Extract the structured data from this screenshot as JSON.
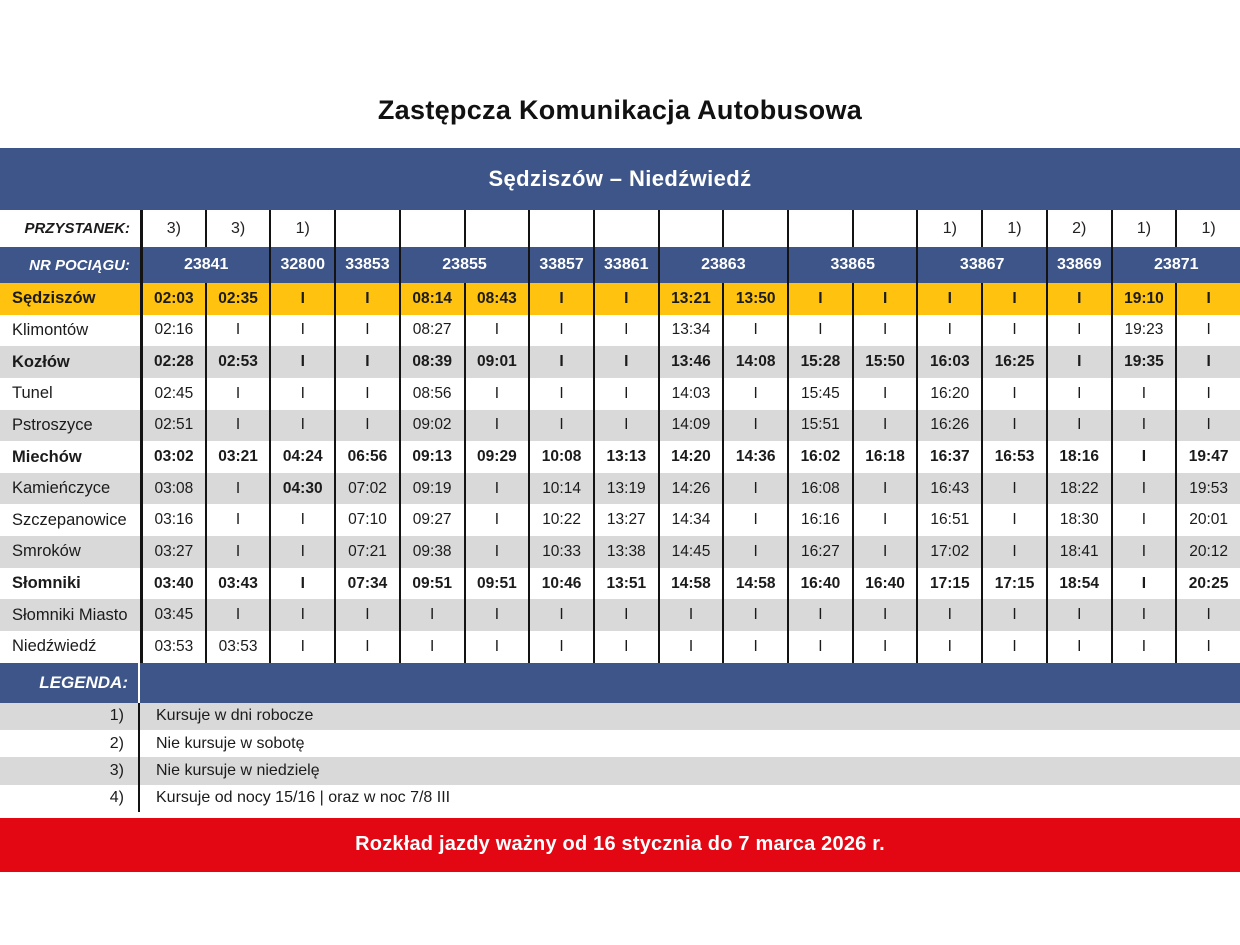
{
  "title": "Zastępcza Komunikacja Autobusowa",
  "route": {
    "title": "Sędziszów – Niedźwiedź"
  },
  "colors": {
    "blue": "#3D5588",
    "yellow": "#FFC20E",
    "red": "#E30613",
    "stripe_gray": "#D9D9D9",
    "line_black": "#131313"
  },
  "table": {
    "stop_label": "PRZYSTANEK:",
    "train_label": "NR POCIĄGU:",
    "footnote_markers": [
      "3)",
      "3)",
      "1)",
      "",
      "",
      "",
      "",
      "",
      "",
      "",
      "",
      "",
      "1)",
      "1)",
      "2)",
      "1)",
      "1)"
    ],
    "trains": [
      {
        "number": "23841",
        "span": 2
      },
      {
        "number": "32800",
        "span": 1
      },
      {
        "number": "33853",
        "span": 1
      },
      {
        "number": "23855",
        "span": 2
      },
      {
        "number": "33857",
        "span": 1
      },
      {
        "number": "33861",
        "span": 1
      },
      {
        "number": "23863",
        "span": 2
      },
      {
        "number": "33865",
        "span": 2
      },
      {
        "number": "33867",
        "span": 2
      },
      {
        "number": "33869",
        "span": 1
      },
      {
        "number": "23871",
        "span": 2
      }
    ],
    "rows": [
      {
        "station": "Sędziszów",
        "bold": true,
        "highlight": true,
        "times": [
          "02:03",
          "02:35",
          "I",
          "I",
          "08:14",
          "08:43",
          "I",
          "I",
          "13:21",
          "13:50",
          "I",
          "I",
          "I",
          "I",
          "I",
          "19:10",
          "I"
        ]
      },
      {
        "station": "Klimontów",
        "bold": false,
        "times": [
          "02:16",
          "I",
          "I",
          "I",
          "08:27",
          "I",
          "I",
          "I",
          "13:34",
          "I",
          "I",
          "I",
          "I",
          "I",
          "I",
          "19:23",
          "I"
        ]
      },
      {
        "station": "Kozłów",
        "bold": true,
        "times": [
          "02:28",
          "02:53",
          "I",
          "I",
          "08:39",
          "09:01",
          "I",
          "I",
          "13:46",
          "14:08",
          "15:28",
          "15:50",
          "16:03",
          "16:25",
          "I",
          "19:35",
          "I"
        ]
      },
      {
        "station": "Tunel",
        "bold": false,
        "times": [
          "02:45",
          "I",
          "I",
          "I",
          "08:56",
          "I",
          "I",
          "I",
          "14:03",
          "I",
          "15:45",
          "I",
          "16:20",
          "I",
          "I",
          "I",
          "I"
        ]
      },
      {
        "station": "Pstroszyce",
        "bold": false,
        "times": [
          "02:51",
          "I",
          "I",
          "I",
          "09:02",
          "I",
          "I",
          "I",
          "14:09",
          "I",
          "15:51",
          "I",
          "16:26",
          "I",
          "I",
          "I",
          "I"
        ]
      },
      {
        "station": "Miechów",
        "bold": true,
        "times": [
          "03:02",
          "03:21",
          "04:24",
          "06:56",
          "09:13",
          "09:29",
          "10:08",
          "13:13",
          "14:20",
          "14:36",
          "16:02",
          "16:18",
          "16:37",
          "16:53",
          "18:16",
          "I",
          "19:47"
        ]
      },
      {
        "station": "Kamieńczyce",
        "bold": false,
        "bold_cells": [
          2
        ],
        "times": [
          "03:08",
          "I",
          "04:30",
          "07:02",
          "09:19",
          "I",
          "10:14",
          "13:19",
          "14:26",
          "I",
          "16:08",
          "I",
          "16:43",
          "I",
          "18:22",
          "I",
          "19:53"
        ]
      },
      {
        "station": "Szczepanowice",
        "bold": false,
        "times": [
          "03:16",
          "I",
          "I",
          "07:10",
          "09:27",
          "I",
          "10:22",
          "13:27",
          "14:34",
          "I",
          "16:16",
          "I",
          "16:51",
          "I",
          "18:30",
          "I",
          "20:01"
        ]
      },
      {
        "station": "Smroków",
        "bold": false,
        "times": [
          "03:27",
          "I",
          "I",
          "07:21",
          "09:38",
          "I",
          "10:33",
          "13:38",
          "14:45",
          "I",
          "16:27",
          "I",
          "17:02",
          "I",
          "18:41",
          "I",
          "20:12"
        ]
      },
      {
        "station": "Słomniki",
        "bold": true,
        "times": [
          "03:40",
          "03:43",
          "I",
          "07:34",
          "09:51",
          "09:51",
          "10:46",
          "13:51",
          "14:58",
          "14:58",
          "16:40",
          "16:40",
          "17:15",
          "17:15",
          "18:54",
          "I",
          "20:25"
        ]
      },
      {
        "station": "Słomniki Miasto",
        "bold": false,
        "times": [
          "03:45",
          "I",
          "I",
          "I",
          "I",
          "I",
          "I",
          "I",
          "I",
          "I",
          "I",
          "I",
          "I",
          "I",
          "I",
          "I",
          "I"
        ]
      },
      {
        "station": "Niedźwiedź",
        "bold": false,
        "times": [
          "03:53",
          "03:53",
          "I",
          "I",
          "I",
          "I",
          "I",
          "I",
          "I",
          "I",
          "I",
          "I",
          "I",
          "I",
          "I",
          "I",
          "I"
        ]
      }
    ]
  },
  "legend": {
    "label": "LEGENDA:",
    "items": [
      {
        "marker": "1)",
        "text": "Kursuje w dni robocze"
      },
      {
        "marker": "2)",
        "text": "Nie kursuje w sobotę"
      },
      {
        "marker": "3)",
        "text": "Nie kursuje w niedzielę"
      },
      {
        "marker": "4)",
        "text": "Kursuje od nocy 15/16  |  oraz w noc 7/8 III"
      }
    ]
  },
  "footer": {
    "validity": "Rozkład jazdy ważny od 16 stycznia do 7 marca 2026 r."
  }
}
